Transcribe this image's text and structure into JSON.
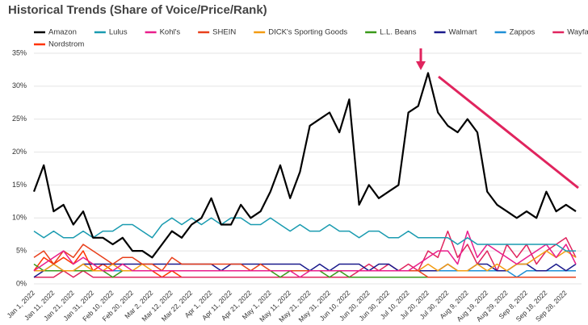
{
  "chart_data": {
    "type": "line",
    "title": "Historical  Trends (Share of Voice/Price/Rank)",
    "categories": [
      "Jan 1, 2022",
      null,
      "Jan 11, 2022",
      null,
      "Jan 21, 2022",
      null,
      "Jan 31, 2022",
      null,
      "Feb 10, 2022",
      null,
      "Feb 20, 2022",
      null,
      "Mar 2, 2022",
      null,
      "Mar 12, 2022",
      null,
      "Mar 22, 2022",
      null,
      "Apr 1, 2022",
      null,
      "Apr 11, 2022",
      null,
      "Apr 21, 2022",
      null,
      "May 1, 2022",
      null,
      "May 11, 2022",
      null,
      "May 21, 2022",
      null,
      "May 31, 2022",
      null,
      "Jun 10, 2022",
      null,
      "Jun 20, 2022",
      null,
      "Jun 30, 2022",
      null,
      "Jul 10, 2022",
      null,
      "Jul 20, 2022",
      null,
      "Jul 30, 2022",
      null,
      "Aug 9, 2022",
      null,
      "Aug 19, 2022",
      null,
      "Aug 29, 2022",
      null,
      "Sep 8, 2022",
      null,
      "Sep 18, 2022",
      null,
      "Sep 28, 2022",
      null
    ],
    "series": [
      {
        "name": "Amazon",
        "color": "#000000",
        "values": [
          14,
          18,
          11,
          12,
          9,
          11,
          7,
          7,
          6,
          7,
          5,
          5,
          4,
          6,
          8,
          7,
          9,
          10,
          13,
          9,
          9,
          12,
          10,
          11,
          14,
          18,
          13,
          17,
          24,
          25,
          26,
          23,
          28,
          12,
          15,
          13,
          14,
          15,
          26,
          27,
          32,
          26,
          24,
          23,
          25,
          23,
          14,
          12,
          11,
          10,
          11,
          10,
          14,
          11,
          12,
          11
        ]
      },
      {
        "name": "Lulus",
        "color": "#1a9bb0",
        "values": [
          8,
          7,
          8,
          7,
          7,
          8,
          7,
          8,
          8,
          9,
          9,
          8,
          7,
          9,
          10,
          9,
          10,
          9,
          10,
          9,
          10,
          10,
          9,
          9,
          10,
          9,
          8,
          9,
          8,
          8,
          9,
          8,
          8,
          7,
          8,
          8,
          7,
          7,
          8,
          7,
          7,
          7,
          7,
          6,
          7,
          6,
          6,
          6,
          6,
          6,
          6,
          6,
          6,
          6,
          5,
          5
        ]
      },
      {
        "name": "Kohl's",
        "color": "#e91e8c",
        "values": [
          2,
          3,
          4,
          5,
          3,
          4,
          3,
          2,
          2,
          3,
          2,
          2,
          2,
          2,
          2,
          2,
          2,
          2,
          2,
          2,
          2,
          2,
          2,
          2,
          2,
          2,
          2,
          1,
          2,
          2,
          2,
          2,
          2,
          2,
          2,
          2,
          2,
          2,
          2,
          3,
          4,
          5,
          5,
          3,
          8,
          4,
          6,
          5,
          4,
          3,
          4,
          5,
          6,
          4,
          6,
          3
        ]
      },
      {
        "name": "SHEIN",
        "color": "#e8401c",
        "values": [
          4,
          5,
          3,
          5,
          4,
          6,
          5,
          4,
          3,
          4,
          4,
          3,
          3,
          2,
          4,
          3,
          3,
          3,
          3,
          3,
          3,
          3,
          2,
          3,
          2,
          2,
          2,
          2,
          2,
          2,
          2,
          2,
          2,
          2,
          2,
          2,
          2,
          2,
          2,
          2,
          1,
          1,
          1,
          1,
          1,
          1,
          1,
          1,
          1,
          1,
          1,
          1,
          1,
          1,
          1,
          1
        ]
      },
      {
        "name": "DICK's Sporting Goods",
        "color": "#f39c12",
        "values": [
          2,
          2,
          3,
          2,
          2,
          3,
          2,
          2,
          3,
          2,
          2,
          3,
          2,
          2,
          2,
          2,
          2,
          2,
          2,
          2,
          2,
          2,
          2,
          2,
          2,
          2,
          2,
          2,
          2,
          2,
          2,
          2,
          2,
          2,
          2,
          2,
          2,
          2,
          2,
          2,
          3,
          2,
          3,
          2,
          2,
          3,
          2,
          3,
          2,
          3,
          3,
          4,
          5,
          4,
          5,
          4
        ]
      },
      {
        "name": "L.L. Beans",
        "color": "#3a9a1a",
        "values": [
          3,
          2,
          2,
          2,
          2,
          2,
          2,
          2,
          1,
          2,
          2,
          2,
          2,
          2,
          2,
          2,
          2,
          2,
          2,
          2,
          2,
          2,
          2,
          2,
          2,
          1,
          2,
          2,
          2,
          2,
          1,
          2,
          1,
          1,
          1,
          1,
          1,
          1,
          1,
          1,
          1,
          1,
          1,
          1,
          1,
          1,
          1,
          1,
          1,
          1,
          1,
          1,
          1,
          1,
          1,
          1
        ]
      },
      {
        "name": "Walmart",
        "color": "#1a1a8c",
        "values": [
          1,
          2,
          2,
          2,
          2,
          3,
          3,
          3,
          3,
          3,
          3,
          3,
          3,
          3,
          3,
          3,
          3,
          3,
          3,
          2,
          3,
          3,
          3,
          3,
          3,
          3,
          3,
          3,
          2,
          3,
          2,
          3,
          3,
          3,
          2,
          3,
          3,
          2,
          2,
          2,
          2,
          2,
          3,
          2,
          2,
          3,
          3,
          2,
          2,
          3,
          3,
          2,
          2,
          3,
          2,
          3
        ]
      },
      {
        "name": "Zappos",
        "color": "#1e8fd6",
        "values": [
          2,
          2,
          3,
          2,
          2,
          2,
          2,
          2,
          2,
          2,
          2,
          2,
          2,
          2,
          2,
          2,
          2,
          2,
          2,
          2,
          2,
          2,
          2,
          2,
          2,
          2,
          2,
          2,
          2,
          2,
          2,
          2,
          2,
          2,
          2,
          2,
          2,
          2,
          2,
          2,
          2,
          2,
          2,
          2,
          2,
          2,
          2,
          2,
          2,
          1,
          2,
          2,
          2,
          2,
          2,
          2
        ]
      },
      {
        "name": "Wayfair",
        "color": "#e0245e",
        "values": [
          1,
          1,
          1,
          2,
          1,
          2,
          1,
          1,
          1,
          1,
          1,
          1,
          1,
          1,
          1,
          1,
          1,
          1,
          1,
          1,
          1,
          1,
          1,
          1,
          1,
          1,
          1,
          1,
          1,
          1,
          1,
          1,
          1,
          2,
          3,
          2,
          3,
          2,
          3,
          2,
          5,
          4,
          8,
          4,
          6,
          3,
          5,
          2,
          6,
          4,
          6,
          3,
          5,
          6,
          7,
          4
        ]
      },
      {
        "name": "Nordstrom",
        "color": "#ff3300",
        "values": [
          2,
          4,
          3,
          4,
          3,
          5,
          2,
          3,
          2,
          2,
          2,
          2,
          2,
          1,
          2,
          1,
          1,
          1,
          1,
          1,
          1,
          1,
          1,
          1,
          1,
          1,
          1,
          1,
          1,
          1,
          1,
          1,
          1,
          1,
          1,
          1,
          1,
          1,
          1,
          1,
          1,
          1,
          1,
          1,
          1,
          1,
          1,
          1,
          1,
          1,
          1,
          1,
          1,
          1,
          1,
          1
        ]
      }
    ],
    "ylim": [
      0,
      35
    ],
    "yticks": [
      {
        "value": 0,
        "label": "0%"
      },
      {
        "value": 5,
        "label": "5%"
      },
      {
        "value": 10,
        "label": "10%"
      },
      {
        "value": 15,
        "label": "15%"
      },
      {
        "value": 20,
        "label": "20%"
      },
      {
        "value": 25,
        "label": "25%"
      },
      {
        "value": 30,
        "label": "30%"
      },
      {
        "value": 35,
        "label": "35%"
      }
    ],
    "grid": true
  }
}
